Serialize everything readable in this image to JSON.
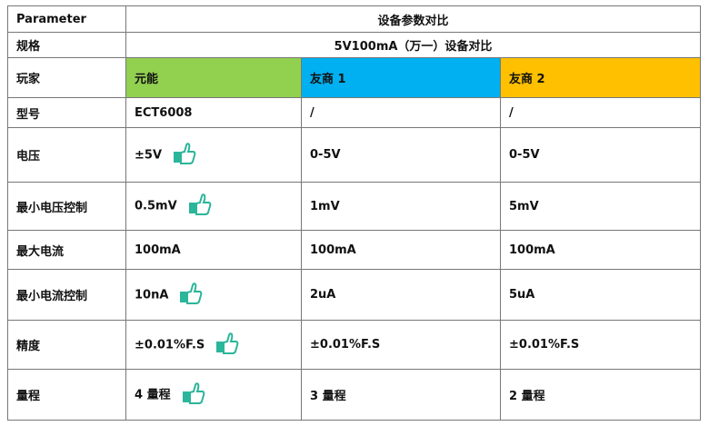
{
  "header": {
    "param_label": "Parameter",
    "title": "设备参数对比",
    "spec_label": "规格",
    "spec_value": "5V100mA（万一）设备对比"
  },
  "colors": {
    "player0": "#92d050",
    "player1": "#00b0f0",
    "player2": "#ffc000",
    "thumb": "#2bb59a"
  },
  "players": {
    "label": "玩家",
    "names": [
      "元能",
      "友商 1",
      "友商 2"
    ]
  },
  "rows": [
    {
      "label": "型号",
      "values": [
        "ECT6008",
        "/",
        "/"
      ],
      "thumb": false
    },
    {
      "label": "电压",
      "values": [
        "±5V",
        "0-5V",
        "0-5V"
      ],
      "thumb": true
    },
    {
      "label": "最小电压控制",
      "values": [
        "0.5mV",
        "1mV",
        "5mV"
      ],
      "thumb": true
    },
    {
      "label": "最大电流",
      "values": [
        "100mA",
        "100mA",
        "100mA"
      ],
      "thumb": false
    },
    {
      "label": "最小电流控制",
      "values": [
        "10nA",
        "2uA",
        "5uA"
      ],
      "thumb": true
    },
    {
      "label": "精度",
      "values": [
        "±0.01%F.S",
        "±0.01%F.S",
        "±0.01%F.S"
      ],
      "thumb": true
    },
    {
      "label": "量程",
      "values": [
        "4 量程",
        "3 量程",
        "2 量程"
      ],
      "thumb": true
    }
  ]
}
